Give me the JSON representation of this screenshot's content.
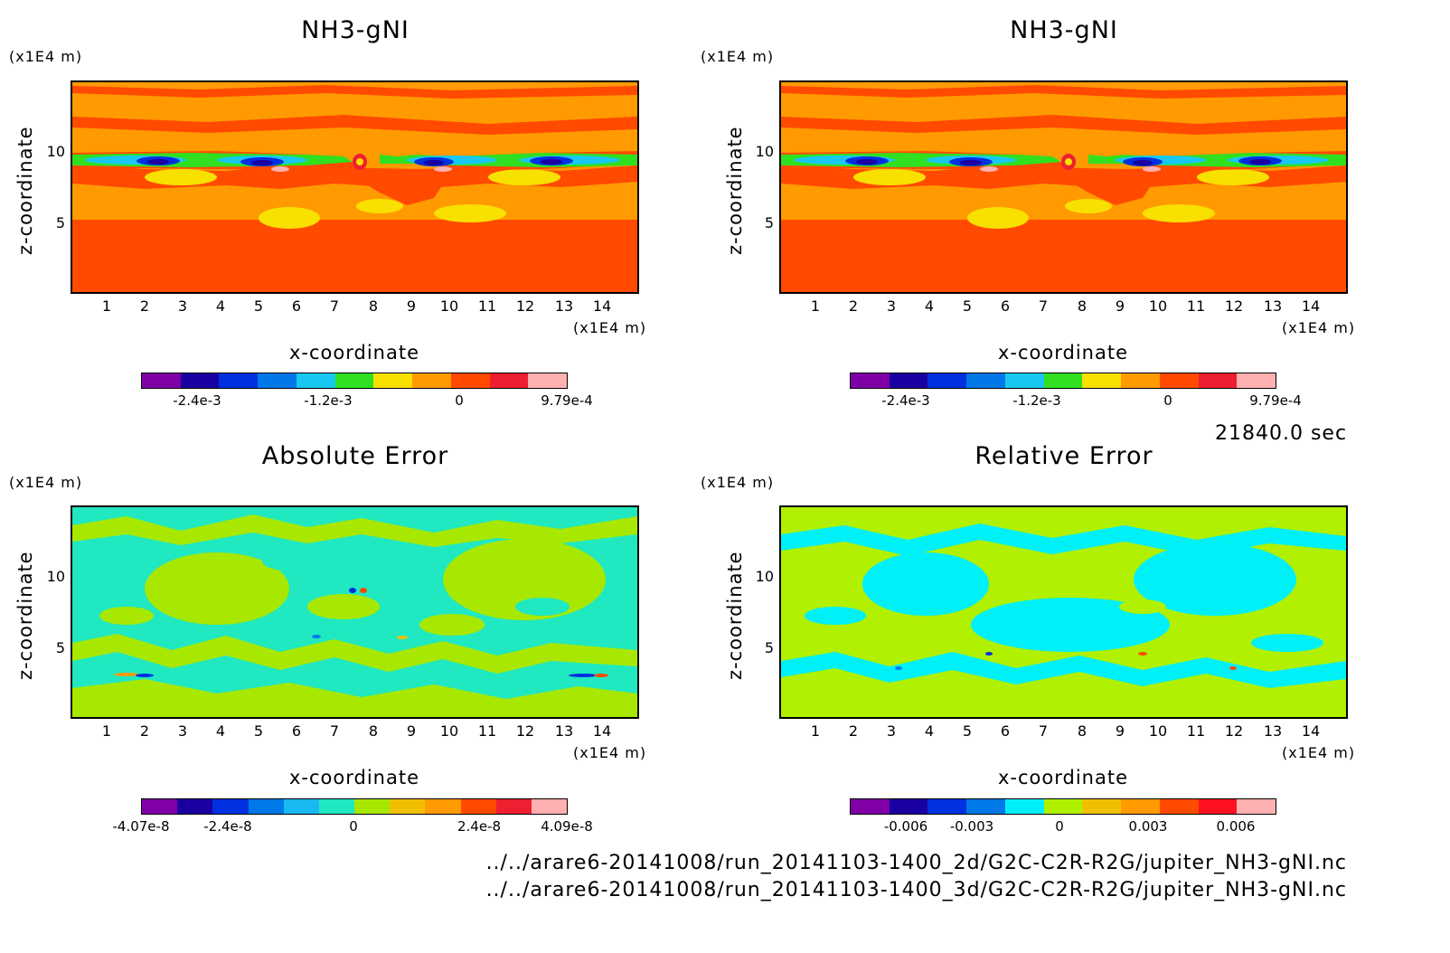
{
  "chart_data": [
    {
      "type": "heatmap",
      "title": "NH3-gNI",
      "xlabel": "x-coordinate",
      "ylabel": "z-coordinate",
      "x_unit": "(x1E4 m)",
      "y_unit": "(x1E4 m)",
      "x_ticks": [
        "1",
        "2",
        "3",
        "4",
        "5",
        "6",
        "7",
        "8",
        "9",
        "10",
        "11",
        "12",
        "13",
        "14"
      ],
      "y_ticks": [
        "5",
        "10"
      ],
      "xlim": [
        0,
        15
      ],
      "ylim": [
        0,
        14.5
      ],
      "colorbar": {
        "colors": [
          "#8000a8",
          "#1a00a0",
          "#0030e0",
          "#0078e8",
          "#18c8f0",
          "#30e020",
          "#f8e000",
          "#ff9a00",
          "#ff4a00",
          "#ee1f30",
          "#ffb0b0"
        ],
        "tick_labels": [
          "-2.4e-3",
          "-1.2e-3",
          "0",
          "9.79e-4"
        ]
      }
    },
    {
      "type": "heatmap",
      "title": "NH3-gNI",
      "xlabel": "x-coordinate",
      "ylabel": "z-coordinate",
      "x_unit": "(x1E4 m)",
      "y_unit": "(x1E4 m)",
      "x_ticks": [
        "1",
        "2",
        "3",
        "4",
        "5",
        "6",
        "7",
        "8",
        "9",
        "10",
        "11",
        "12",
        "13",
        "14"
      ],
      "y_ticks": [
        "5",
        "10"
      ],
      "xlim": [
        0,
        15
      ],
      "ylim": [
        0,
        14.5
      ],
      "colorbar": {
        "colors": [
          "#8000a8",
          "#1a00a0",
          "#0030e0",
          "#0078e8",
          "#18c8f0",
          "#30e020",
          "#f8e000",
          "#ff9a00",
          "#ff4a00",
          "#ee1f30",
          "#ffb0b0"
        ],
        "tick_labels": [
          "-2.4e-3",
          "-1.2e-3",
          "0",
          "9.79e-4"
        ]
      }
    },
    {
      "type": "heatmap",
      "title": "Absolute Error",
      "xlabel": "x-coordinate",
      "ylabel": "z-coordinate",
      "x_unit": "(x1E4 m)",
      "y_unit": "(x1E4 m)",
      "x_ticks": [
        "1",
        "2",
        "3",
        "4",
        "5",
        "6",
        "7",
        "8",
        "9",
        "10",
        "11",
        "12",
        "13",
        "14"
      ],
      "y_ticks": [
        "5",
        "10"
      ],
      "xlim": [
        0,
        15
      ],
      "ylim": [
        0,
        14.5
      ],
      "colorbar": {
        "colors": [
          "#8000a8",
          "#1a00a0",
          "#0030e0",
          "#0078e8",
          "#18b8f0",
          "#20e8c0",
          "#a8e800",
          "#f0c000",
          "#ff9a00",
          "#ff4a00",
          "#ee1f30",
          "#ffb0b0"
        ],
        "tick_labels": [
          "-4.07e-8",
          "-2.4e-8",
          "0",
          "2.4e-8",
          "4.09e-8"
        ]
      }
    },
    {
      "type": "heatmap",
      "title": "Relative Error",
      "xlabel": "x-coordinate",
      "ylabel": "z-coordinate",
      "x_unit": "(x1E4 m)",
      "y_unit": "(x1E4 m)",
      "x_ticks": [
        "1",
        "2",
        "3",
        "4",
        "5",
        "6",
        "7",
        "8",
        "9",
        "10",
        "11",
        "12",
        "13",
        "14"
      ],
      "y_ticks": [
        "5",
        "10"
      ],
      "xlim": [
        0,
        15
      ],
      "ylim": [
        0,
        14.5
      ],
      "colorbar": {
        "colors": [
          "#8000a8",
          "#1a00a0",
          "#0030e0",
          "#0078e8",
          "#00f0f8",
          "#b0f000",
          "#f0c000",
          "#ff9a00",
          "#ff4a00",
          "#ff1020",
          "#ffb0b0"
        ],
        "tick_labels": [
          "-0.006",
          "-0.003",
          "0",
          "0.003",
          "0.006"
        ]
      }
    }
  ],
  "time_label": "21840.0 sec",
  "files": [
    "../../arare6-20141008/run_20141103-1400_2d/G2C-C2R-R2G/jupiter_NH3-gNI.nc",
    "../../arare6-20141008/run_20141103-1400_3d/G2C-C2R-R2G/jupiter_NH3-gNI.nc"
  ]
}
